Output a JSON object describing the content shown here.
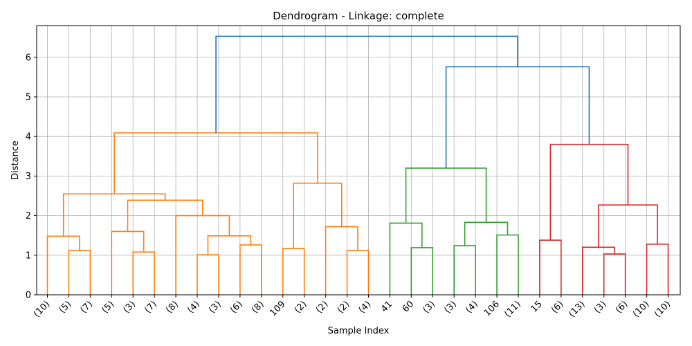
{
  "chart_data": {
    "type": "dendrogram",
    "title": "Dendrogram - Linkage: complete",
    "xlabel": "Sample Index",
    "ylabel": "Distance",
    "ylim": [
      0,
      6.8
    ],
    "yticks": [
      0,
      1,
      2,
      3,
      4,
      5,
      6
    ],
    "grid": true,
    "leaf_labels": [
      "(10)",
      "(5)",
      "(7)",
      "(5)",
      "(3)",
      "(7)",
      "(8)",
      "(4)",
      "(3)",
      "(6)",
      "(8)",
      "109",
      "(2)",
      "(2)",
      "(2)",
      "(4)",
      "41",
      "60",
      "(3)",
      "(3)",
      "(4)",
      "106",
      "(11)",
      "15",
      "(6)",
      "(13)",
      "(3)",
      "(6)",
      "(10)",
      "(10)"
    ],
    "cluster_colors": {
      "orange": "#ff7f0e",
      "green": "#2ca02c",
      "red": "#d62728",
      "above_threshold": "#1f77b4"
    },
    "merges": [
      {
        "left": 1,
        "right": 2,
        "height": 1.12,
        "color": "orange"
      },
      {
        "left": 0,
        "right": "m0",
        "height": 1.48,
        "color": "orange"
      },
      {
        "left": 4,
        "right": 5,
        "height": 1.08,
        "color": "orange"
      },
      {
        "left": 3,
        "right": "m2",
        "height": 1.6,
        "color": "orange"
      },
      {
        "left": 7,
        "right": 8,
        "height": 1.01,
        "color": "orange"
      },
      {
        "left": 9,
        "right": 10,
        "height": 1.26,
        "color": "orange"
      },
      {
        "left": "m4",
        "right": "m5",
        "height": 1.49,
        "color": "orange"
      },
      {
        "left": 6,
        "right": "m6",
        "height": 2.0,
        "color": "orange"
      },
      {
        "left": "m3",
        "right": "m7",
        "height": 2.39,
        "color": "orange"
      },
      {
        "left": "m1",
        "right": "m8",
        "height": 2.55,
        "color": "orange"
      },
      {
        "left": 11,
        "right": 12,
        "height": 1.17,
        "color": "orange"
      },
      {
        "left": 14,
        "right": 15,
        "height": 1.12,
        "color": "orange"
      },
      {
        "left": 13,
        "right": "m11",
        "height": 1.72,
        "color": "orange"
      },
      {
        "left": "m10",
        "right": "m12",
        "height": 2.82,
        "color": "orange"
      },
      {
        "left": "m9",
        "right": "m13",
        "height": 4.09,
        "color": "orange"
      },
      {
        "left": 17,
        "right": 18,
        "height": 1.19,
        "color": "green"
      },
      {
        "left": 16,
        "right": "m15",
        "height": 1.81,
        "color": "green"
      },
      {
        "left": 19,
        "right": 20,
        "height": 1.24,
        "color": "green"
      },
      {
        "left": 21,
        "right": 22,
        "height": 1.51,
        "color": "green"
      },
      {
        "left": "m17",
        "right": "m18",
        "height": 1.83,
        "color": "green"
      },
      {
        "left": "m16",
        "right": "m19",
        "height": 3.2,
        "color": "green"
      },
      {
        "left": 23,
        "right": 24,
        "height": 1.38,
        "color": "red"
      },
      {
        "left": 26,
        "right": 27,
        "height": 1.03,
        "color": "red"
      },
      {
        "left": 25,
        "right": "m22",
        "height": 1.2,
        "color": "red"
      },
      {
        "left": 28,
        "right": 29,
        "height": 1.28,
        "color": "red"
      },
      {
        "left": "m23",
        "right": "m24",
        "height": 2.27,
        "color": "red"
      },
      {
        "left": "m21",
        "right": "m25",
        "height": 3.8,
        "color": "red"
      },
      {
        "left": "m20",
        "right": "m26",
        "height": 5.76,
        "color": "above_threshold"
      },
      {
        "left": "m14",
        "right": "m27",
        "height": 6.53,
        "color": "above_threshold"
      }
    ]
  }
}
